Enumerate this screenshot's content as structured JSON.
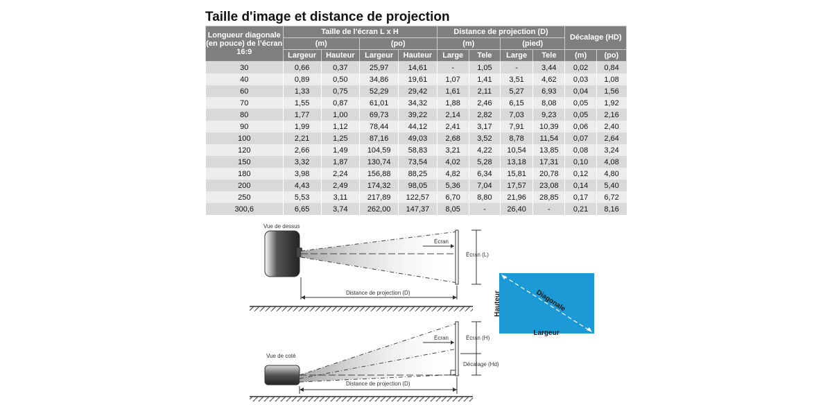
{
  "title": "Taille d'image et distance de projection",
  "headers": {
    "diag": "Longueur diagonale (en pouce) de l’écran 16:9",
    "screen_size": "Taille de l’écran L x H",
    "throw_distance": "Distance de projection (D)",
    "offset": "Décalage (HD)",
    "unit_m": "(m)",
    "unit_po": "(po)",
    "unit_pied": "(pied)",
    "largeur": "Largeur",
    "hauteur": "Hauteur",
    "large": "Large",
    "tele": "Tele"
  },
  "rows": [
    [
      "30",
      "0,66",
      "0,37",
      "25,97",
      "14,61",
      "-",
      "1,05",
      "-",
      "3,44",
      "0,02",
      "0,84"
    ],
    [
      "40",
      "0,89",
      "0,50",
      "34,86",
      "19,61",
      "1,07",
      "1,41",
      "3,51",
      "4,62",
      "0,03",
      "1,08"
    ],
    [
      "60",
      "1,33",
      "0,75",
      "52,29",
      "29,42",
      "1,61",
      "2,11",
      "5,27",
      "6,93",
      "0,04",
      "1,56"
    ],
    [
      "70",
      "1,55",
      "0,87",
      "61,01",
      "34,32",
      "1,88",
      "2,46",
      "6,15",
      "8,08",
      "0,05",
      "1,92"
    ],
    [
      "80",
      "1,77",
      "1,00",
      "69,73",
      "39,22",
      "2,14",
      "2,82",
      "7,03",
      "9,23",
      "0,05",
      "2,16"
    ],
    [
      "90",
      "1,99",
      "1,12",
      "78,44",
      "44,12",
      "2,41",
      "3,17",
      "7,91",
      "10,39",
      "0,06",
      "2,40"
    ],
    [
      "100",
      "2,21",
      "1,25",
      "87,16",
      "49,03",
      "2,68",
      "3,52",
      "8,78",
      "11,54",
      "0,07",
      "2,64"
    ],
    [
      "120",
      "2,66",
      "1,49",
      "104,59",
      "58,83",
      "3,21",
      "4,22",
      "10,54",
      "13,85",
      "0,08",
      "3,24"
    ],
    [
      "150",
      "3,32",
      "1,87",
      "130,74",
      "73,54",
      "4,02",
      "5,28",
      "13,18",
      "17,31",
      "0,10",
      "4,08"
    ],
    [
      "180",
      "3,98",
      "2,24",
      "156,88",
      "88,25",
      "4,82",
      "6,34",
      "15,81",
      "20,78",
      "0,12",
      "4,80"
    ],
    [
      "200",
      "4,43",
      "2,49",
      "174,32",
      "98,05",
      "5,36",
      "7,04",
      "17,57",
      "23,08",
      "0,14",
      "5,40"
    ],
    [
      "250",
      "5,53",
      "3,11",
      "217,89",
      "122,57",
      "6,70",
      "8,80",
      "21,96",
      "28,85",
      "0,17",
      "6,72"
    ],
    [
      "300,6",
      "6,65",
      "3,74",
      "262,00",
      "147,37",
      "8,05",
      "-",
      "26,40",
      "-",
      "0,21",
      "8,16"
    ]
  ],
  "diagram": {
    "top_view": "Vue de dessus",
    "side_view": "Vue de coté",
    "screen": "Écran",
    "screen_L": "Écran (L)",
    "screen_H": "Écran (H)",
    "throw_distance": "Distance de projection (D)",
    "offset_hd": "Décalage (Hd)",
    "hauteur": "Hauteur",
    "diagonale": "Diagonale",
    "largeur": "Largeur",
    "screen_color": "#1b9ad6"
  }
}
